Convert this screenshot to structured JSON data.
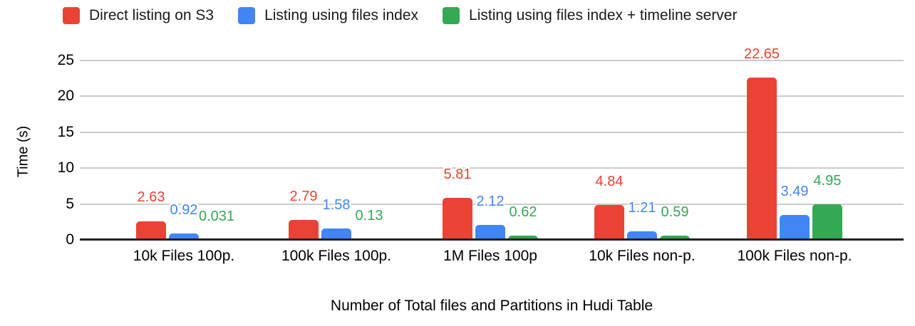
{
  "chart_data": {
    "type": "bar",
    "title": "",
    "xlabel": "Number of Total files and Partitions in Hudi Table",
    "ylabel": "Time (s)",
    "ylim": [
      0,
      25
    ],
    "yticks": [
      0,
      5,
      10,
      15,
      20,
      25
    ],
    "grid": true,
    "legend_position": "top",
    "categories": [
      "10k Files 100p.",
      "100k Files 100p.",
      "1M Files 100p",
      "10k Files non-p.",
      "100k Files non-p."
    ],
    "series": [
      {
        "name": "Direct listing on S3",
        "color": "#EA4335",
        "values": [
          2.63,
          2.79,
          5.81,
          4.84,
          22.65
        ],
        "value_labels": [
          "2.63",
          "2.79",
          "5.81",
          "4.84",
          "22.65"
        ]
      },
      {
        "name": "Listing using files index",
        "color": "#4285F4",
        "values": [
          0.92,
          1.58,
          2.12,
          1.21,
          3.49
        ],
        "value_labels": [
          "0.92",
          "1.58",
          "2.12",
          "1.21",
          "3.49"
        ]
      },
      {
        "name": "Listing using files index + timeline server",
        "color": "#34A853",
        "values": [
          0.031,
          0.13,
          0.62,
          0.59,
          4.95
        ],
        "value_labels": [
          "0.031",
          "0.13",
          "0.62",
          "0.59",
          "4.95"
        ]
      }
    ]
  },
  "colors": {
    "gridline": "#cccccc",
    "axis_line": "#212121",
    "label_text": "#000000"
  }
}
